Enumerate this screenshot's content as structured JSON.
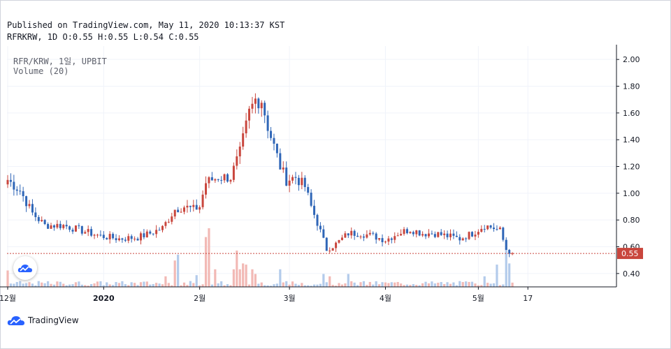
{
  "header": {
    "published": "Published on TradingView.com, May 11, 2020 10:13:37 KST",
    "ohlc": "RFRKRW, 1D O:0.55 H:0.55 L:0.54 C:0.55"
  },
  "legend": {
    "symbol": "RFR/KRW, 1일, UPBIT",
    "volume": "Volume (20)"
  },
  "brand": {
    "name": "TradingView"
  },
  "colors": {
    "up": "#c9463d",
    "down": "#2f66b7",
    "up_vol": "#f2b9b5",
    "down_vol": "#b3cbeb",
    "last_line": "#c9463d",
    "grid": "#f0f3fa"
  },
  "chart_data": {
    "type": "candlestick",
    "ylim": [
      0.3,
      2.1
    ],
    "y_ticks": [
      "2.00",
      "1.80",
      "1.60",
      "1.40",
      "1.20",
      "1.00",
      "0.80",
      "0.60",
      "0.40"
    ],
    "x_ticks": [
      {
        "label": "12월",
        "day": 0
      },
      {
        "label": "2020",
        "day": 31
      },
      {
        "label": "2월",
        "day": 62
      },
      {
        "label": "3월",
        "day": 91
      },
      {
        "label": "4월",
        "day": 122
      },
      {
        "label": "5월",
        "day": 152
      },
      {
        "label": "17",
        "day": 168
      }
    ],
    "last_price": "0.55",
    "anchors": [
      [
        0,
        1.1
      ],
      [
        4,
        1.02
      ],
      [
        8,
        0.85
      ],
      [
        12,
        0.76
      ],
      [
        18,
        0.76
      ],
      [
        24,
        0.72
      ],
      [
        30,
        0.68
      ],
      [
        36,
        0.66
      ],
      [
        42,
        0.67
      ],
      [
        46,
        0.7
      ],
      [
        50,
        0.74
      ],
      [
        54,
        0.88
      ],
      [
        57,
        0.9
      ],
      [
        60,
        0.88
      ],
      [
        62,
        0.9
      ],
      [
        64,
        1.08
      ],
      [
        68,
        1.12
      ],
      [
        72,
        1.12
      ],
      [
        75,
        1.3
      ],
      [
        78,
        1.6
      ],
      [
        80,
        1.7
      ],
      [
        82,
        1.7
      ],
      [
        84,
        1.5
      ],
      [
        86,
        1.35
      ],
      [
        88,
        1.2
      ],
      [
        90,
        1.1
      ],
      [
        93,
        1.12
      ],
      [
        96,
        1.05
      ],
      [
        98,
        0.9
      ],
      [
        100,
        0.78
      ],
      [
        103,
        0.58
      ],
      [
        106,
        0.62
      ],
      [
        110,
        0.7
      ],
      [
        114,
        0.7
      ],
      [
        118,
        0.68
      ],
      [
        122,
        0.65
      ],
      [
        126,
        0.7
      ],
      [
        130,
        0.73
      ],
      [
        134,
        0.7
      ],
      [
        138,
        0.7
      ],
      [
        142,
        0.68
      ],
      [
        146,
        0.66
      ],
      [
        150,
        0.7
      ],
      [
        154,
        0.76
      ],
      [
        157,
        0.74
      ],
      [
        159,
        0.72
      ],
      [
        161,
        0.58
      ],
      [
        163,
        0.55
      ]
    ],
    "volume_peaks": [
      {
        "day": 0,
        "height": 0.28
      },
      {
        "day": 51,
        "height": 0.18
      },
      {
        "day": 54,
        "height": 0.45
      },
      {
        "day": 55,
        "height": 0.55
      },
      {
        "day": 61,
        "height": 0.2
      },
      {
        "day": 64,
        "height": 0.85
      },
      {
        "day": 65,
        "height": 1.0
      },
      {
        "day": 67,
        "height": 0.3
      },
      {
        "day": 73,
        "height": 0.3
      },
      {
        "day": 74,
        "height": 0.62
      },
      {
        "day": 75,
        "height": 0.3
      },
      {
        "day": 76,
        "height": 0.4
      },
      {
        "day": 77,
        "height": 0.38
      },
      {
        "day": 79,
        "height": 0.3
      },
      {
        "day": 80,
        "height": 0.22
      },
      {
        "day": 88,
        "height": 0.3
      },
      {
        "day": 102,
        "height": 0.22
      },
      {
        "day": 104,
        "height": 0.18
      },
      {
        "day": 110,
        "height": 0.22
      },
      {
        "day": 154,
        "height": 0.18
      },
      {
        "day": 158,
        "height": 0.38
      },
      {
        "day": 161,
        "height": 0.8
      },
      {
        "day": 162,
        "height": 0.4
      }
    ]
  }
}
